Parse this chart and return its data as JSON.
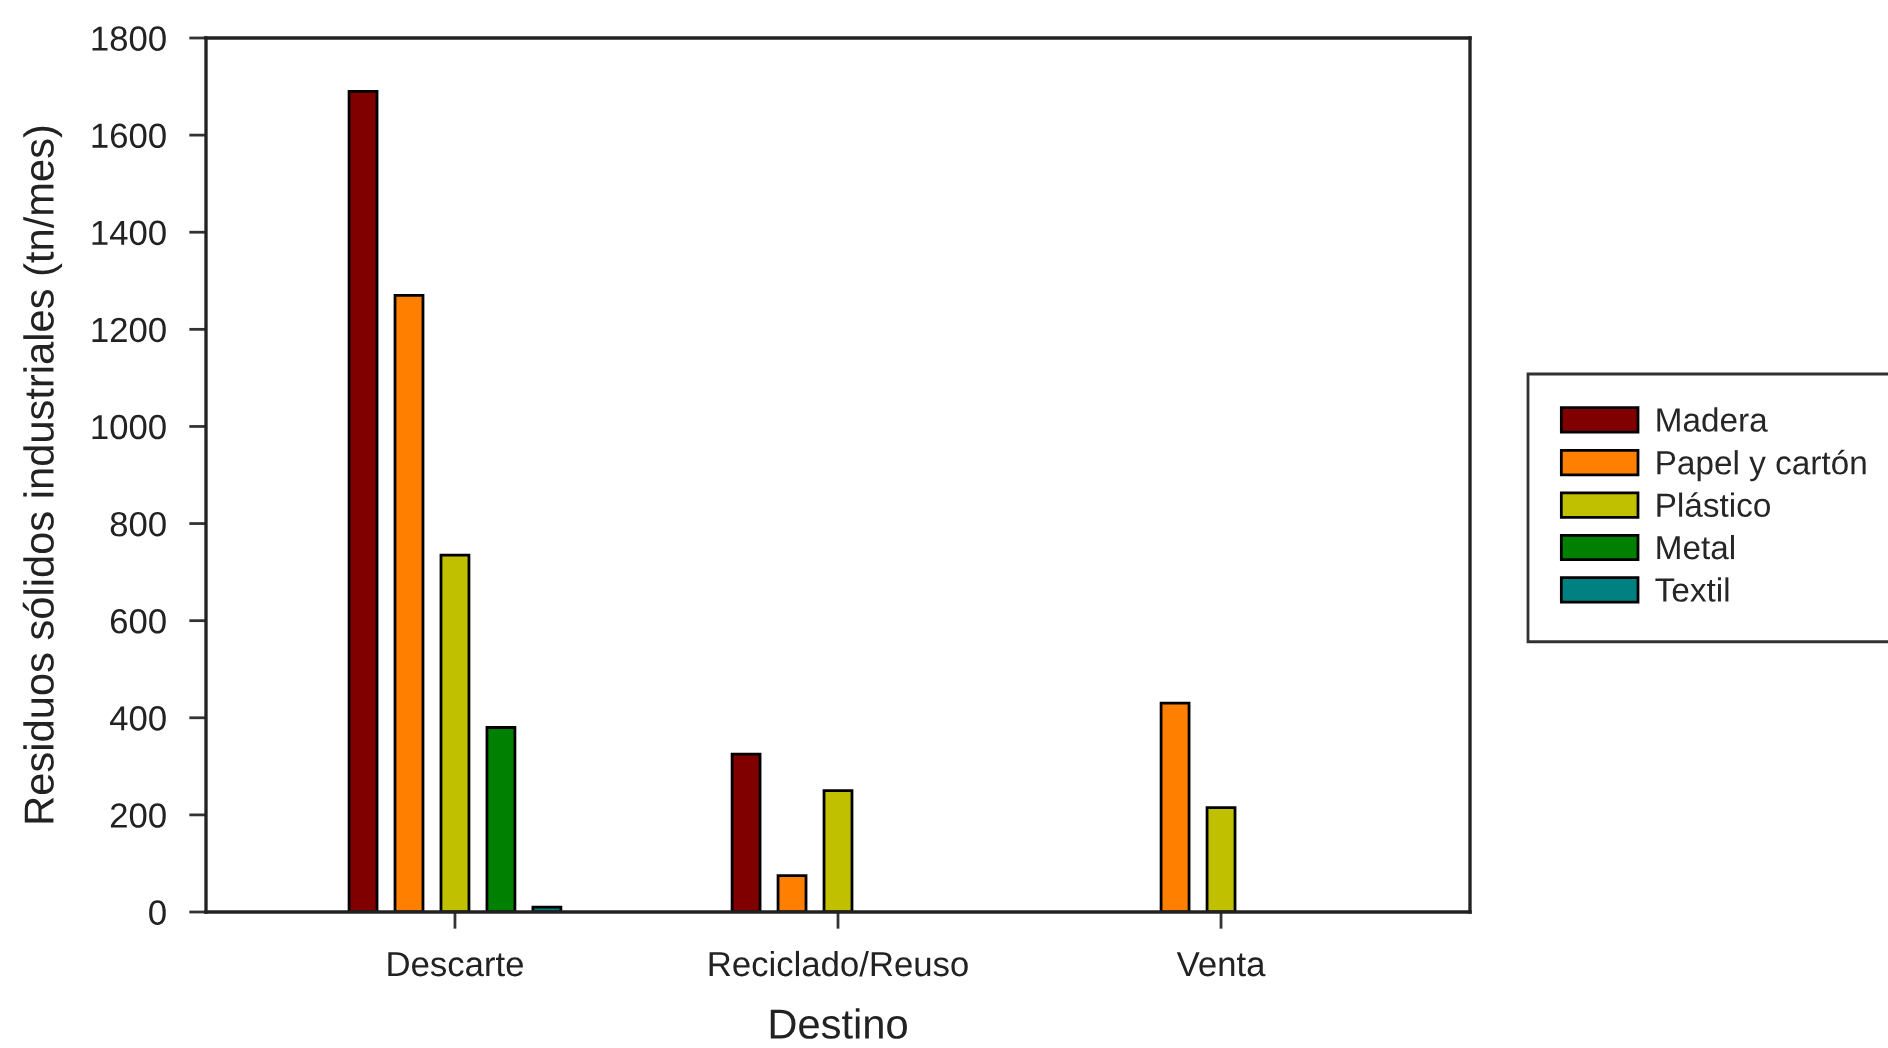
{
  "chart_data": {
    "type": "bar",
    "xlabel": "Destino",
    "ylabel": "Residuos sólidos industriales (tn/mes)",
    "categories": [
      "Descarte",
      "Reciclado/Reuso",
      "Venta"
    ],
    "series": [
      {
        "name": "Madera",
        "color": "#800000",
        "values": [
          1690,
          325,
          null
        ]
      },
      {
        "name": "Papel y cartón",
        "color": "#ff8000",
        "values": [
          1270,
          75,
          430
        ]
      },
      {
        "name": "Plástico",
        "color": "#c0c000",
        "values": [
          735,
          250,
          215
        ]
      },
      {
        "name": "Metal",
        "color": "#008000",
        "values": [
          380,
          null,
          null
        ]
      },
      {
        "name": "Textil",
        "color": "#008080",
        "values": [
          10,
          null,
          null
        ]
      }
    ],
    "ylim": [
      0,
      1800
    ],
    "yticks": [
      0,
      200,
      400,
      600,
      800,
      1000,
      1200,
      1400,
      1600,
      1800
    ],
    "legend": "right"
  }
}
